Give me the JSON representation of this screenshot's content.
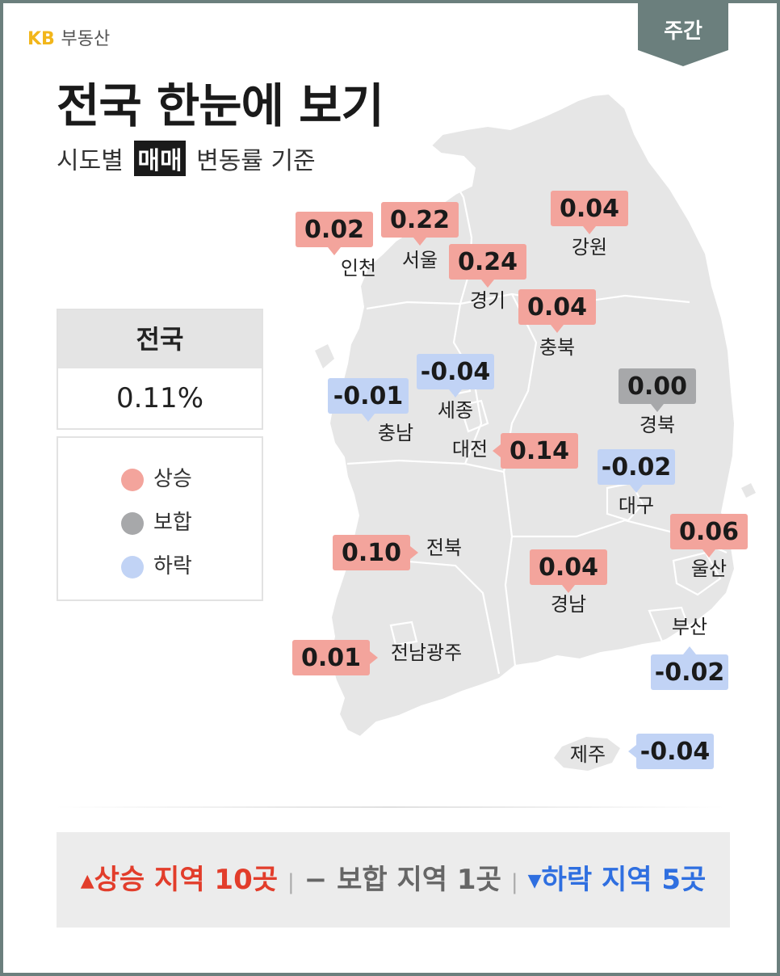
{
  "brand": {
    "kb": "KB",
    "name": "부동산"
  },
  "tag": "주간",
  "title": "전국 한눈에 보기",
  "subtitle": {
    "pre": "시도별",
    "highlight": "매매",
    "post": "변동률 기준"
  },
  "national": {
    "label": "전국",
    "value": "0.11%"
  },
  "legend": [
    {
      "label": "상승",
      "color": "#f3a49c"
    },
    {
      "label": "보합",
      "color": "#a7a8aa"
    },
    {
      "label": "하락",
      "color": "#c1d3f5"
    }
  ],
  "colors": {
    "up": "#f3a49c",
    "flat": "#a7a8aa",
    "down": "#c1d3f5",
    "map": "#e6e6e6",
    "frame": "#6b7f7d"
  },
  "chart_data": {
    "type": "map",
    "unit": "%",
    "regions": [
      {
        "name": "인천",
        "value": 0.02,
        "label": "0.02",
        "status": "up"
      },
      {
        "name": "서울",
        "value": 0.22,
        "label": "0.22",
        "status": "up"
      },
      {
        "name": "경기",
        "value": 0.24,
        "label": "0.24",
        "status": "up"
      },
      {
        "name": "강원",
        "value": 0.04,
        "label": "0.04",
        "status": "up"
      },
      {
        "name": "충북",
        "value": 0.04,
        "label": "0.04",
        "status": "up"
      },
      {
        "name": "세종",
        "value": -0.04,
        "label": "-0.04",
        "status": "down"
      },
      {
        "name": "충남",
        "value": -0.01,
        "label": "-0.01",
        "status": "down"
      },
      {
        "name": "경북",
        "value": 0.0,
        "label": "0.00",
        "status": "flat"
      },
      {
        "name": "대전",
        "value": 0.14,
        "label": "0.14",
        "status": "up"
      },
      {
        "name": "대구",
        "value": -0.02,
        "label": "-0.02",
        "status": "down"
      },
      {
        "name": "울산",
        "value": 0.06,
        "label": "0.06",
        "status": "up"
      },
      {
        "name": "전북",
        "value": 0.1,
        "label": "0.10",
        "status": "up"
      },
      {
        "name": "경남",
        "value": 0.04,
        "label": "0.04",
        "status": "up"
      },
      {
        "name": "부산",
        "value": -0.02,
        "label": "-0.02",
        "status": "down"
      },
      {
        "name": "전남광주",
        "value": 0.01,
        "label": "0.01",
        "status": "up"
      },
      {
        "name": "제주",
        "value": -0.04,
        "label": "-0.04",
        "status": "down"
      }
    ]
  },
  "summary": {
    "up": "상승 지역 10곳",
    "flat": "보합 지역 1곳",
    "down": "하락 지역 5곳"
  }
}
